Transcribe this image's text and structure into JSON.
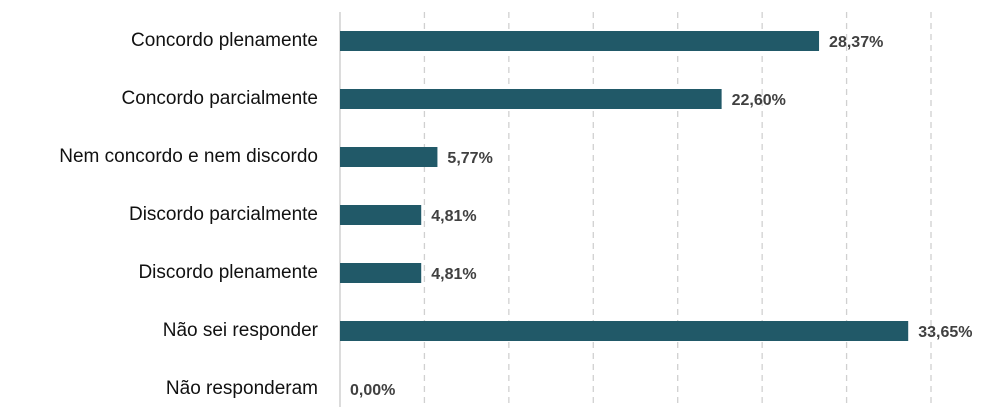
{
  "chart_data": {
    "type": "barh",
    "categories": [
      "Concordo plenamente",
      "Concordo parcialmente",
      "Nem concordo e nem discordo",
      "Discordo parcialmente",
      "Discordo plenamente",
      "Não sei responder",
      "Não responderam"
    ],
    "values": [
      28.37,
      22.6,
      5.77,
      4.81,
      4.81,
      33.65,
      0
    ],
    "value_labels": [
      "28,37%",
      "22,60%",
      "5,77%",
      "4,81%",
      "4,81%",
      "33,65%",
      "0,00%"
    ],
    "color": "#215968",
    "xlim": [
      0,
      35
    ],
    "xticks": [
      0,
      5,
      10,
      15,
      20,
      25,
      30,
      35
    ],
    "grid": true
  }
}
